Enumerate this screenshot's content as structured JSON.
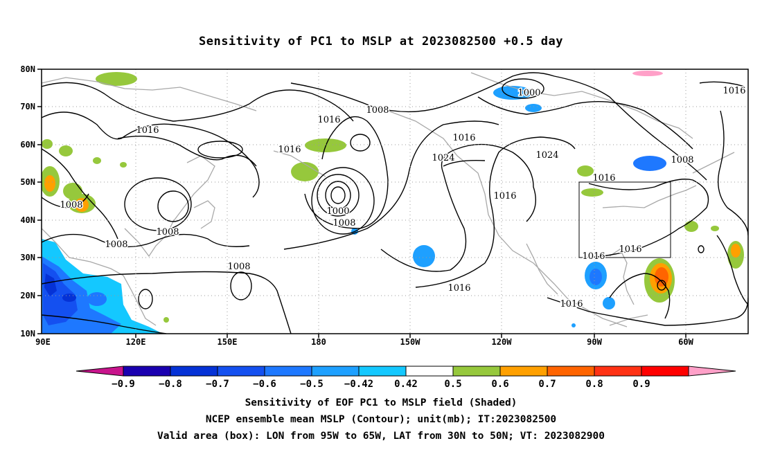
{
  "title": "Sensitivity of PC1 to MSLP at 2023082500 +0.5 day",
  "lat_labels": [
    "80N",
    "70N",
    "60N",
    "50N",
    "40N",
    "30N",
    "20N",
    "10N"
  ],
  "lon_labels": [
    "90E",
    "120E",
    "150E",
    "180",
    "150W",
    "120W",
    "90W",
    "60W"
  ],
  "contour_labels": [
    "1016",
    "1008",
    "1016",
    "1008",
    "1000",
    "1016",
    "1016",
    "1024",
    "1024",
    "1016",
    "1016",
    "1008",
    "1000",
    "1008",
    "1008",
    "1008",
    "1008",
    "1016",
    "1016",
    "1016",
    "1016",
    "1016"
  ],
  "colorbar": {
    "labels": [
      "-0.9",
      "-0.8",
      "-0.7",
      "-0.6",
      "-0.5",
      "-0.42",
      "0.42",
      "0.5",
      "0.6",
      "0.7",
      "0.8",
      "0.9"
    ],
    "colors": [
      "#1a00b0",
      "#0532d6",
      "#1450f0",
      "#1e78ff",
      "#1ea0ff",
      "#14c8ff",
      "#ffffff",
      "#96c83c",
      "#ffa000",
      "#ff6400",
      "#ff3214",
      "#ff0000"
    ],
    "end_low": "#c8148c",
    "end_high": "#ffa0c8"
  },
  "valid_box": {
    "lon": [
      "95W",
      "65W"
    ],
    "lat": [
      "30N",
      "50N"
    ]
  },
  "captions": [
    "Sensitivity of EOF PC1 to MSLP field (Shaded)",
    "NCEP ensemble mean MSLP (Contour); unit(mb); IT:2023082500",
    "Valid area (box): LON from 95W to 65W, LAT from 30N to 50N; VT: 2023082900"
  ]
}
